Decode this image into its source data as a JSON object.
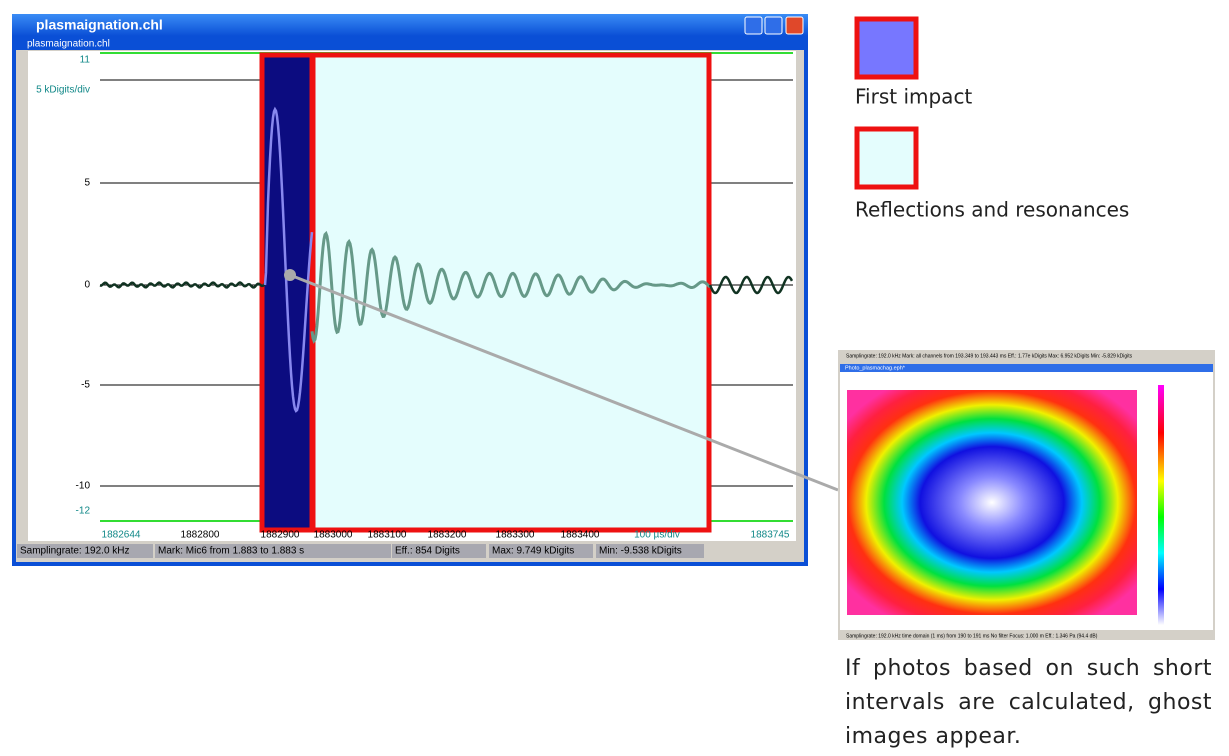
{
  "window": {
    "title": "plasmaignation.chl",
    "subtitle": "plasmaignation.chl"
  },
  "plot": {
    "y_labels": [
      "11",
      "5 kDigits/div",
      "5",
      "0",
      "-5",
      "-10",
      "-12"
    ],
    "x_labels": [
      "1882644",
      "1882800",
      "1882900",
      "1883000",
      "1883100",
      "1883200",
      "1883300",
      "1883400",
      "100 µs/div",
      "1883745"
    ]
  },
  "status": [
    "Samplingrate: 192.0 kHz",
    "Mark: Mic6 from 1.883 to 1.883 s",
    "Eff.: 854 Digits",
    "Max: 9.749 kDigits",
    "Min: -9.538 kDigits"
  ],
  "legend": [
    "First impact",
    "Reflections and resonances"
  ],
  "inset": {
    "top_status": "Samplingrate: 192.0 kHz   Mark: all channels from 193.349 to 193.443 ms   Eff.: 1.77e kDigits   Max: 6.952 kDigits   Min: -5.829 kDigits",
    "title": "Photo_plasmachag.eph*",
    "bottom_status": "Samplingrate: 192.0 kHz   time domain (1 ms) from 190 to 191 ms   No filter   Focus: 1.000 m   Eff.: 1.346 Pa (94.4 dB)"
  },
  "caption": "If photos based on such short intervals are calculated, ghost images appear."
}
